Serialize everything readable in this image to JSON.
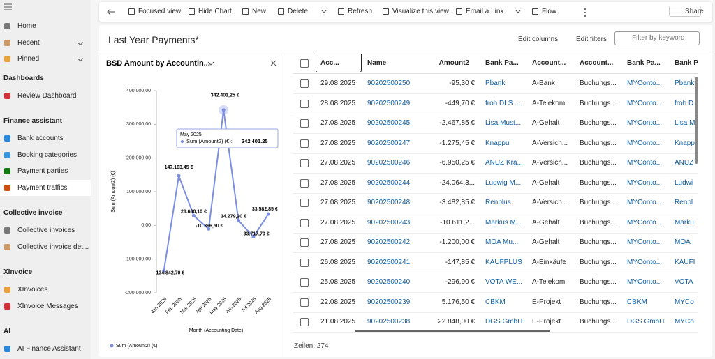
{
  "sidebar": {
    "top_items": [
      "Home",
      "Recent",
      "Pinned"
    ],
    "sections": [
      {
        "title": "Dashboards",
        "items": [
          "Review Dashboard"
        ]
      },
      {
        "title": "Finance assistant",
        "items": [
          "Bank accounts",
          "Booking categories",
          "Payment parties",
          "Payment traffics"
        ]
      },
      {
        "title": "Collective invoice",
        "items": [
          "Collective invoices",
          "Collective invoice det..."
        ]
      },
      {
        "title": "XInvoice",
        "items": [
          "XInvoices",
          "XInvoice Messages"
        ]
      },
      {
        "title": "AI",
        "items": [
          "AI Finance Assistant"
        ]
      }
    ]
  },
  "toolbar": {
    "items": [
      "Focused view",
      "Hide Chart",
      "New",
      "Delete",
      "Refresh",
      "Visualize this view",
      "Email a Link",
      "Flow"
    ],
    "share": "Share"
  },
  "view": {
    "title": "Last Year Payments*",
    "edit_columns": "Edit columns",
    "edit_filters": "Edit filters",
    "search_placeholder": "Filter by keyword"
  },
  "chart_data": {
    "type": "line",
    "title": "BSD Amount by Accountin...",
    "x_label": "Month (Accounting Date)",
    "y_label": "Sum (Amount2) (€)",
    "categories": [
      "Jan 2025",
      "Feb 2025",
      "Mar 2025",
      "Apr 2025",
      "May 2025",
      "Jun 2025",
      "Jul 2025",
      "Aug 2025"
    ],
    "series": [
      {
        "name": "Sum (Amount2) (€)",
        "color": "#7b8ee0",
        "values": [
          -134842.7,
          147163.45,
          28680.1,
          -10396.5,
          342401.25,
          14279.2,
          -33717.7,
          33582.85
        ],
        "value_labels": [
          "-134.842,70 €",
          "147.163,45 €",
          "28.680,10 €",
          "-10.396,50 €",
          "342.401,25 €",
          "14.279,20 €",
          "-33.717,70 €",
          "33.582,85 €"
        ]
      }
    ],
    "ylim": [
      -200000,
      400000
    ],
    "yticks": [
      {
        "value": 400000,
        "label": "400.000,00"
      },
      {
        "value": 300000,
        "label": "300.000,00"
      },
      {
        "value": 200000,
        "label": "200.000,00"
      },
      {
        "value": 100000,
        "label": "100.000,00"
      },
      {
        "value": 0,
        "label": "0,00"
      },
      {
        "value": -100000,
        "label": "-100.000,00"
      },
      {
        "value": -200000,
        "label": "-200.000,00"
      }
    ],
    "grid": false,
    "tooltip": {
      "title": "May 2025",
      "label": "Sum (Amount2) (€):",
      "value": "342 401.25"
    }
  },
  "table": {
    "columns": [
      "Acc...",
      "Name",
      "Amount2",
      "Bank Pa...",
      "Account...",
      "Account...",
      "Bank Pa...",
      "Bank Pa..."
    ],
    "rows": [
      [
        "29.08.2025",
        "90202500250",
        "-95,30 €",
        "Pbank",
        "A-Bank",
        "Buchungs...",
        "MYConto...",
        "Pbank"
      ],
      [
        "28.08.2025",
        "90202500249",
        "-449,70 €",
        "froh DLS ...",
        "A-Telekom",
        "Buchungs...",
        "MYConto...",
        "froh D"
      ],
      [
        "27.08.2025",
        "90202500245",
        "-2.467,85 €",
        "Lisa Must...",
        "A-Gehalt",
        "Buchungs...",
        "MYConto...",
        "Lisa M"
      ],
      [
        "27.08.2025",
        "90202500247",
        "-1.275,45 €",
        "Knappu",
        "A-Versich...",
        "Buchungs...",
        "MYConto...",
        "Knapp"
      ],
      [
        "27.08.2025",
        "90202500246",
        "-6.950,25 €",
        "ANUZ Kra...",
        "A-Versich...",
        "Buchungs...",
        "MYConto...",
        "ANUZ"
      ],
      [
        "27.08.2025",
        "90202500244",
        "-24.064,3...",
        "Ludwig M...",
        "A-Gehalt",
        "Buchungs...",
        "MYConto...",
        "Ludwi"
      ],
      [
        "27.08.2025",
        "90202500248",
        "-3.482,85 €",
        "Renplus",
        "A-Versich...",
        "Buchungs...",
        "MYConto...",
        "Renpl"
      ],
      [
        "27.08.2025",
        "90202500243",
        "-10.611,2...",
        "Markus M...",
        "A-Gehalt",
        "Buchungs...",
        "MYConto...",
        "Marku"
      ],
      [
        "27.08.2025",
        "90202500242",
        "-1.200,00 €",
        "MOA Mu...",
        "A-Gehalt",
        "Buchungs...",
        "MYConto...",
        "MOA"
      ],
      [
        "26.08.2025",
        "90202500241",
        "-147,85 €",
        "KAUFPLUS",
        "A-Einkäufe",
        "Buchungs...",
        "MYConto...",
        "KAUFI"
      ],
      [
        "25.08.2025",
        "90202500240",
        "-296,90 €",
        "VOTA WE...",
        "A-Telekom",
        "Buchungs...",
        "MYConto...",
        "VOTA"
      ],
      [
        "22.08.2025",
        "90202500239",
        "5.176,50 €",
        "CBKM",
        "E-Projekt",
        "Buchungs...",
        "CBKM",
        "MYCo"
      ],
      [
        "21.08.2025",
        "90202500238",
        "22.848,00 €",
        "DGS GmbH",
        "E-Projekt",
        "Buchungs...",
        "DGS GmbH",
        "MYCo"
      ]
    ],
    "footer": "Zeilen: 274"
  }
}
